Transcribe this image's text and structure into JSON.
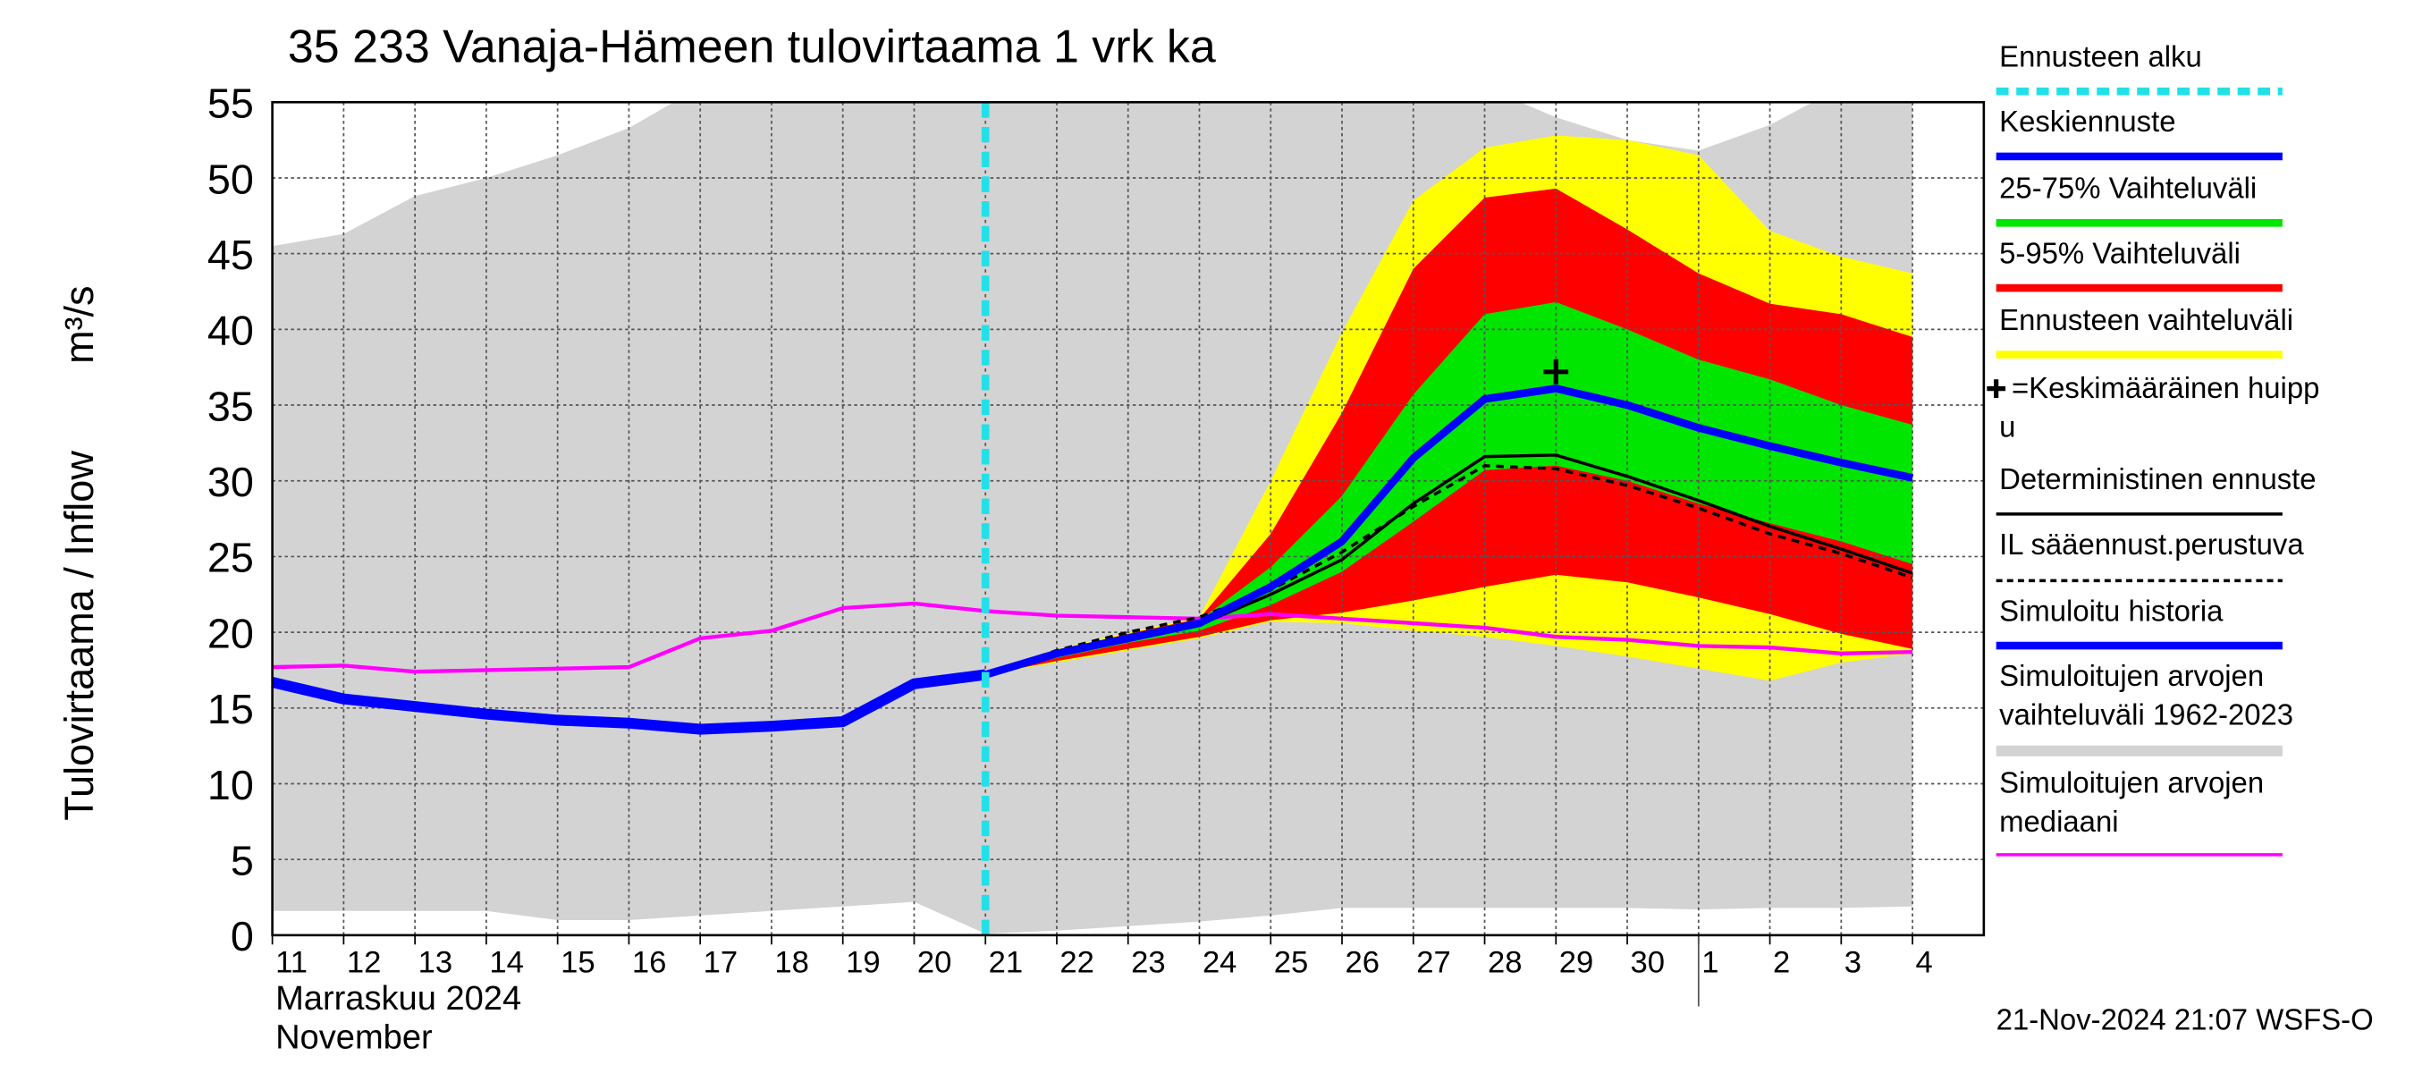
{
  "chart_data": {
    "type": "line",
    "title": "35 233 Vanaja-Hämeen tulovirtaama 1 vrk ka",
    "y_label": "Tulovirtaama / Inflow",
    "y_unit": "m³/s",
    "month_labels": [
      "Marraskuu 2024",
      "November"
    ],
    "footer": "21-Nov-2024 21:07 WSFS-O",
    "categories": [
      "11",
      "12",
      "13",
      "14",
      "15",
      "16",
      "17",
      "18",
      "19",
      "20",
      "21",
      "22",
      "23",
      "24",
      "25",
      "26",
      "27",
      "28",
      "29",
      "30",
      "1",
      "2",
      "3",
      "4"
    ],
    "month_start": "1",
    "ylim": [
      0,
      55
    ],
    "yticks": [
      0,
      5,
      10,
      15,
      20,
      25,
      30,
      35,
      40,
      45,
      50,
      55
    ],
    "grid": true,
    "forecast_start": {
      "name": [
        "Ennusteen alku"
      ],
      "color": "#22e0e8",
      "category": "21"
    },
    "peak": {
      "name": [
        "=Keskimääräinen huipp",
        "u"
      ],
      "color": "#000000",
      "category": "29",
      "value": 37.2
    },
    "series": [
      {
        "name": [
          "Keskiennuste"
        ],
        "kind": "line",
        "color": "#0000ff",
        "width": 5,
        "values": [
          null,
          null,
          null,
          null,
          null,
          null,
          null,
          null,
          null,
          null,
          17.2,
          18.6,
          19.6,
          20.6,
          23.0,
          26.0,
          31.5,
          35.4,
          36.1,
          35.0,
          33.5,
          32.3,
          31.2,
          30.2
        ]
      },
      {
        "name": [
          "25-75% Vaihteluväli"
        ],
        "kind": "band",
        "color": "#00e600",
        "high": [
          null,
          null,
          null,
          null,
          null,
          null,
          null,
          null,
          null,
          null,
          17.2,
          18.7,
          19.8,
          20.8,
          24.3,
          29.0,
          35.7,
          41.0,
          41.8,
          40.0,
          38.0,
          36.7,
          35.0,
          33.7
        ],
        "low": [
          null,
          null,
          null,
          null,
          null,
          null,
          null,
          null,
          null,
          null,
          17.2,
          18.3,
          19.3,
          20.1,
          21.8,
          24.0,
          27.3,
          30.7,
          31.0,
          30.0,
          28.5,
          27.2,
          26.0,
          24.5
        ]
      },
      {
        "name": [
          "5-95% Vaihteluväli"
        ],
        "kind": "band",
        "color": "#ff0000",
        "high": [
          null,
          null,
          null,
          null,
          null,
          null,
          null,
          null,
          null,
          null,
          17.2,
          18.8,
          19.9,
          20.9,
          26.5,
          34.5,
          44.0,
          48.7,
          49.3,
          46.6,
          43.7,
          41.7,
          41.0,
          39.5
        ],
        "low": [
          null,
          null,
          null,
          null,
          null,
          null,
          null,
          null,
          null,
          null,
          17.2,
          18.1,
          18.9,
          19.7,
          20.8,
          21.3,
          22.1,
          23.0,
          23.8,
          23.3,
          22.3,
          21.2,
          19.9,
          18.9
        ]
      },
      {
        "name": [
          "Ennusteen vaihteluväli"
        ],
        "kind": "band",
        "color": "#ffff00",
        "high": [
          null,
          null,
          null,
          null,
          null,
          null,
          null,
          null,
          null,
          null,
          17.2,
          18.9,
          20.0,
          21.0,
          30.0,
          39.8,
          48.5,
          52.0,
          52.8,
          52.5,
          51.5,
          46.5,
          44.8,
          43.7
        ],
        "low": [
          null,
          null,
          null,
          null,
          null,
          null,
          null,
          null,
          null,
          null,
          17.2,
          18.0,
          18.8,
          19.6,
          20.7,
          20.6,
          20.1,
          19.7,
          19.1,
          18.4,
          17.6,
          16.8,
          18.0,
          18.6
        ]
      },
      {
        "name": [
          "Deterministinen ennuste"
        ],
        "kind": "line",
        "color": "#000000",
        "width": 2,
        "values": [
          null,
          null,
          null,
          null,
          null,
          null,
          null,
          null,
          null,
          null,
          17.2,
          18.5,
          19.6,
          20.5,
          22.5,
          24.8,
          28.5,
          31.6,
          31.7,
          30.3,
          28.7,
          27.0,
          25.5,
          23.9
        ]
      },
      {
        "name": [
          "IL sääennust.perustuva"
        ],
        "kind": "line",
        "color": "#000000",
        "width": 2,
        "dash": true,
        "values": [
          null,
          null,
          null,
          null,
          null,
          null,
          null,
          null,
          null,
          null,
          17.2,
          18.8,
          20.0,
          21.0,
          22.8,
          25.3,
          28.3,
          31.0,
          30.8,
          29.7,
          28.2,
          26.5,
          25.2,
          23.6
        ]
      },
      {
        "name": [
          "Simuloitu historia"
        ],
        "kind": "line",
        "color": "#0000ff",
        "width": 7,
        "values": [
          16.7,
          15.6,
          15.1,
          14.6,
          14.2,
          14.0,
          13.6,
          13.8,
          14.1,
          16.6,
          17.2,
          null,
          null,
          null,
          null,
          null,
          null,
          null,
          null,
          null,
          null,
          null,
          null,
          null
        ]
      },
      {
        "name": [
          "Simuloitujen arvojen",
          "vaihteluväli 1962-2023"
        ],
        "kind": "band",
        "color": "#d3d3d3",
        "high": [
          45.5,
          46.3,
          48.8,
          50.0,
          51.5,
          53.3,
          56,
          56,
          56,
          56,
          56,
          56,
          56,
          56,
          56,
          56,
          56,
          56,
          54.0,
          52.5,
          51.8,
          53.5,
          56,
          56
        ],
        "low": [
          1.6,
          1.6,
          1.6,
          1.6,
          1.0,
          1.0,
          1.3,
          1.6,
          1.9,
          2.2,
          0.1,
          0.3,
          0.6,
          0.9,
          1.3,
          1.8,
          1.8,
          1.8,
          1.8,
          1.8,
          1.7,
          1.8,
          1.8,
          1.9
        ]
      },
      {
        "name": [
          "Simuloitujen arvojen",
          "mediaani"
        ],
        "kind": "line",
        "color": "#ff00ff",
        "width": 2.5,
        "values": [
          17.7,
          17.8,
          17.4,
          17.5,
          17.6,
          17.7,
          19.6,
          20.1,
          21.6,
          21.9,
          21.4,
          21.1,
          21.0,
          20.9,
          21.2,
          20.9,
          20.6,
          20.3,
          19.7,
          19.5,
          19.1,
          19.0,
          18.6,
          18.7
        ]
      }
    ]
  }
}
